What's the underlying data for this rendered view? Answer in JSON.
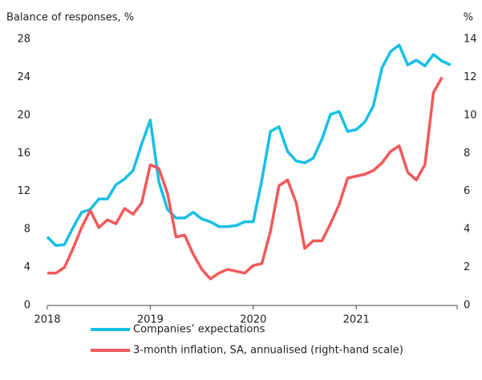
{
  "chart_data": {
    "type": "line",
    "ylabel": "Balance of responses, %",
    "y2label": "%",
    "categories": [
      "2018",
      null,
      null,
      null,
      null,
      null,
      null,
      null,
      null,
      null,
      null,
      null,
      "2019",
      null,
      null,
      null,
      null,
      null,
      null,
      null,
      null,
      null,
      null,
      null,
      "2020",
      null,
      null,
      null,
      null,
      null,
      null,
      null,
      null,
      null,
      null,
      null,
      "2021",
      null,
      null,
      null,
      null,
      null,
      null,
      null,
      null,
      null,
      null,
      null
    ],
    "series": [
      {
        "name": "Companies’ expectations",
        "color": "#17bfe6",
        "values": [
          7.2,
          6.3,
          6.4,
          8.2,
          9.8,
          10.1,
          11.2,
          11.2,
          12.7,
          13.3,
          14.2,
          17.0,
          19.5,
          13.0,
          10.1,
          9.2,
          9.2,
          9.8,
          9.1,
          8.8,
          8.3,
          8.3,
          8.4,
          8.8,
          8.8,
          13.2,
          18.3,
          18.8,
          16.2,
          15.2,
          15.0,
          15.5,
          17.5,
          20.1,
          20.4,
          18.3,
          18.5,
          19.3,
          21.0,
          25.0,
          26.7,
          27.4,
          25.3,
          25.8,
          25.2,
          26.4,
          25.7,
          25.3
        ]
      },
      {
        "name": "3-month inflation, SA, annualised (right-hand scale)",
        "color": "#f2595a",
        "axis": "y2",
        "values": [
          1.7,
          1.7,
          2.0,
          3.0,
          4.1,
          5.0,
          4.1,
          4.5,
          4.3,
          5.1,
          4.8,
          5.4,
          7.4,
          7.2,
          5.9,
          3.6,
          3.7,
          2.7,
          1.9,
          1.4,
          1.7,
          1.9,
          1.8,
          1.7,
          2.1,
          2.2,
          3.9,
          6.3,
          6.6,
          5.4,
          3.0,
          3.4,
          3.4,
          4.3,
          5.3,
          6.7,
          6.8,
          6.9,
          7.1,
          7.5,
          8.1,
          8.4,
          7.0,
          6.6,
          7.4,
          11.2,
          12.0,
          null
        ]
      }
    ],
    "ylim": [
      0,
      28
    ],
    "yticks": [
      0,
      4,
      8,
      12,
      16,
      20,
      24,
      28
    ],
    "y2lim": [
      0,
      14
    ],
    "y2ticks": [
      0,
      2,
      4,
      6,
      8,
      10,
      12,
      14
    ],
    "grid": false
  }
}
